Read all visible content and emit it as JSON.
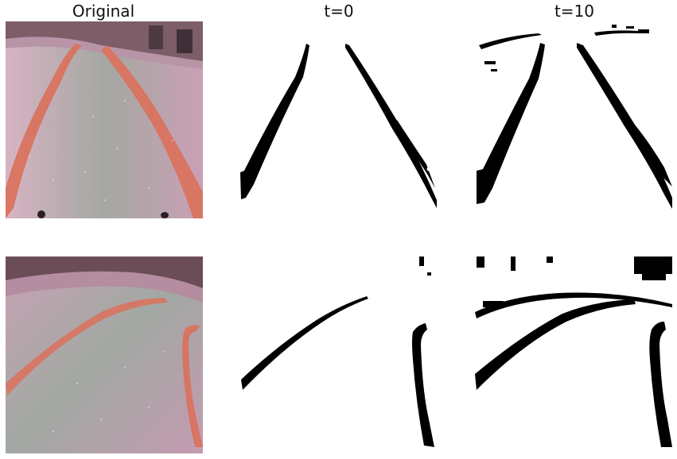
{
  "titles": {
    "col1": "Original",
    "col2": "t=0",
    "col3": "t=10"
  },
  "rows": [
    {
      "original": "road photo, pink-gray floor with two red lane lines converging toward the top",
      "t0": "binary mask: two thin black lane lines forming an inverted V",
      "t10": "binary mask: two thicker black lane lines plus speckle near the top"
    },
    {
      "original": "road photo, floor with a red lane curving left-to-right and a second lane on the right edge",
      "t0": "binary mask: curved black lane arc on the left and a black stroke on the right",
      "t10": "binary mask: thicker curved lane arc, right stroke, and horizon speckle"
    }
  ],
  "colors": {
    "floor_pink": "#c7a2b3",
    "floor_gray": "#9aa39d",
    "lane_red": "#d9735f",
    "wall_dark": "#6b4d58",
    "mask_black": "#000000",
    "mask_white": "#ffffff"
  }
}
